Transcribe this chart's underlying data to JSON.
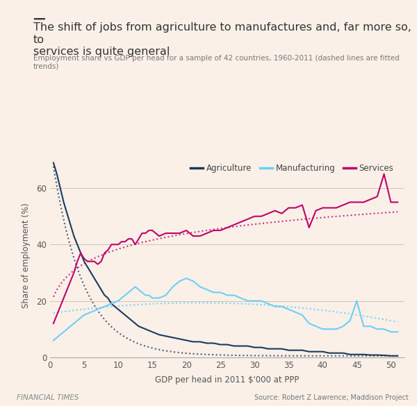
{
  "title": "The shift of jobs from agriculture to manufactures and, far more so, to\nservices is quite general",
  "subtitle": "Employment share vs GDP per head for a sample of 42 countries, 1960-2011 (dashed lines are fitted\ntrends)",
  "xlabel": "GDP per head in 2011 $'000 at PPP",
  "ylabel": "Share of employment (%)",
  "source": "Source: Robert Z Lawrence; Maddison Project",
  "ft_label": "FINANCIAL TIMES",
  "background_color": "#faf0e8",
  "agri_color": "#1a3a5c",
  "manuf_color": "#6dcff6",
  "services_color": "#c0006a",
  "trend_color_agri": "#4a7aaa",
  "trend_color_manuf": "#a0dff8",
  "trend_color_services": "#e06090",
  "xlim": [
    0,
    52
  ],
  "ylim": [
    0,
    72
  ],
  "yticks": [
    0,
    20,
    40,
    60
  ],
  "xticks": [
    0,
    5,
    10,
    15,
    20,
    25,
    30,
    35,
    40,
    45,
    50
  ],
  "agri_x": [
    0.5,
    1,
    1.5,
    2,
    2.5,
    3,
    3.5,
    4,
    4.5,
    5,
    5.5,
    6,
    6.5,
    7,
    7.5,
    8,
    8.5,
    9,
    9.5,
    10,
    10.5,
    11,
    11.5,
    12,
    12.5,
    13,
    13.5,
    14,
    14.5,
    15,
    16,
    17,
    18,
    19,
    20,
    21,
    22,
    23,
    24,
    25,
    26,
    27,
    28,
    29,
    30,
    31,
    32,
    33,
    34,
    35,
    36,
    37,
    38,
    39,
    40,
    41,
    42,
    43,
    44,
    45,
    46,
    47,
    48,
    49,
    50,
    51
  ],
  "agri_y": [
    69,
    65,
    60,
    55,
    51,
    47,
    43,
    40,
    37,
    34,
    32,
    30,
    28,
    26,
    24,
    22,
    21,
    19,
    18,
    17,
    16,
    15,
    14,
    13,
    12,
    11,
    10.5,
    10,
    9.5,
    9,
    8,
    7.5,
    7,
    6.5,
    6,
    5.5,
    5.5,
    5,
    5,
    4.5,
    4.5,
    4,
    4,
    4,
    3.5,
    3.5,
    3,
    3,
    3,
    2.5,
    2.5,
    2.5,
    2,
    2,
    2,
    1.5,
    1.5,
    1.5,
    1,
    1,
    1,
    0.8,
    0.8,
    0.7,
    0.5,
    0.5
  ],
  "manuf_x": [
    0.5,
    1,
    1.5,
    2,
    2.5,
    3,
    3.5,
    4,
    4.5,
    5,
    5.5,
    6,
    6.5,
    7,
    7.5,
    8,
    8.5,
    9,
    9.5,
    10,
    10.5,
    11,
    11.5,
    12,
    12.5,
    13,
    13.5,
    14,
    14.5,
    15,
    16,
    17,
    18,
    19,
    20,
    21,
    22,
    23,
    24,
    25,
    26,
    27,
    28,
    29,
    30,
    31,
    32,
    33,
    34,
    35,
    36,
    37,
    38,
    39,
    40,
    41,
    42,
    43,
    44,
    45,
    46,
    47,
    48,
    49,
    50,
    51
  ],
  "manuf_y": [
    6,
    7,
    8,
    9,
    10,
    11,
    12,
    13,
    14,
    15,
    15.5,
    16,
    16.5,
    17,
    17.5,
    18,
    18.5,
    19,
    19.5,
    20,
    21,
    22,
    23,
    24,
    25,
    24,
    23,
    22,
    22,
    21,
    21,
    22,
    25,
    27,
    28,
    27,
    25,
    24,
    23,
    23,
    22,
    22,
    21,
    20,
    20,
    20,
    19,
    18,
    18,
    17,
    16,
    15,
    12,
    11,
    10,
    10,
    10,
    11,
    13,
    20,
    11,
    11,
    10,
    10,
    9,
    9
  ],
  "services_x": [
    0.5,
    1,
    1.5,
    2,
    2.5,
    3,
    3.5,
    4,
    4.5,
    5,
    5.5,
    6,
    6.5,
    7,
    7.5,
    8,
    8.5,
    9,
    9.5,
    10,
    10.5,
    11,
    11.5,
    12,
    12.5,
    13,
    13.5,
    14,
    14.5,
    15,
    16,
    17,
    18,
    19,
    20,
    21,
    22,
    23,
    24,
    25,
    26,
    27,
    28,
    29,
    30,
    31,
    32,
    33,
    34,
    35,
    36,
    37,
    38,
    39,
    40,
    41,
    42,
    43,
    44,
    45,
    46,
    47,
    48,
    49,
    50,
    51
  ],
  "services_y": [
    12,
    15,
    18,
    21,
    24,
    27,
    30,
    34,
    37,
    35,
    34,
    34,
    34,
    33,
    34,
    37,
    38,
    40,
    40,
    40,
    41,
    41,
    42,
    42,
    40,
    42,
    44,
    44,
    45,
    45,
    43,
    44,
    44,
    44,
    45,
    43,
    43,
    44,
    45,
    45,
    46,
    47,
    48,
    49,
    50,
    50,
    51,
    52,
    51,
    53,
    53,
    54,
    46,
    52,
    53,
    53,
    53,
    54,
    55,
    55,
    55,
    56,
    57,
    65,
    55,
    55
  ],
  "agri_trend_x": [
    0.5,
    51
  ],
  "agri_trend_coeffs": [
    20.0,
    -0.38
  ],
  "manuf_trend_x": [
    0.5,
    51
  ],
  "manuf_trend_coeffs": [
    19.0,
    0.02
  ],
  "services_trend_x": [
    0.5,
    51
  ],
  "services_trend_coeffs": [
    25.0,
    0.55
  ]
}
